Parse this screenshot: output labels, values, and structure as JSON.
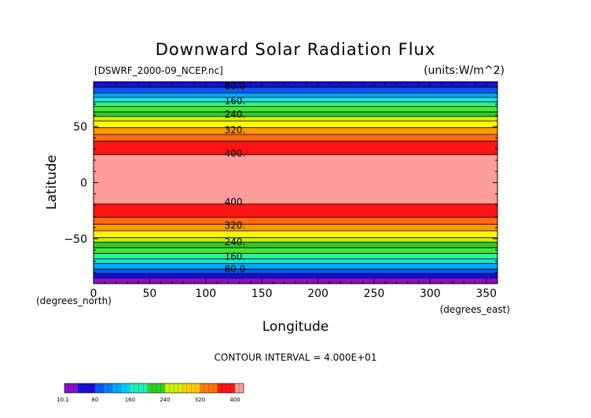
{
  "chart_data": {
    "type": "contour",
    "title": "Downward Solar Radiation Flux",
    "file_label": "[DSWRF_2000-09_NCEP.nc]",
    "units_label": "(units:W/m^2)",
    "xlabel": "Longitude",
    "ylabel": "Latitude",
    "x_unit_label": "(degrees_east)",
    "y_unit_label": "(degrees_north)",
    "xlim": [
      0,
      360
    ],
    "ylim": [
      -90,
      90
    ],
    "x_ticks": [
      0,
      50,
      100,
      150,
      200,
      250,
      300,
      350
    ],
    "y_ticks": [
      -50,
      0,
      50
    ],
    "y_tick_labels": [
      "−50",
      "0",
      "50"
    ],
    "contour_interval_text": "CONTOUR INTERVAL = 4.000E+01",
    "bands": [
      {
        "lat_min": 85,
        "lat_max": 90,
        "color": "#1a0cd8"
      },
      {
        "lat_min": 80,
        "lat_max": 85,
        "color": "#0a5af0"
      },
      {
        "lat_min": 76,
        "lat_max": 80,
        "color": "#00a8ff"
      },
      {
        "lat_min": 72,
        "lat_max": 76,
        "color": "#10e8d8"
      },
      {
        "lat_min": 68,
        "lat_max": 72,
        "color": "#30f090"
      },
      {
        "lat_min": 63,
        "lat_max": 68,
        "color": "#40e830"
      },
      {
        "lat_min": 59,
        "lat_max": 63,
        "color": "#30c820"
      },
      {
        "lat_min": 55,
        "lat_max": 59,
        "color": "#d0f000"
      },
      {
        "lat_min": 49,
        "lat_max": 55,
        "color": "#fff600"
      },
      {
        "lat_min": 43,
        "lat_max": 49,
        "color": "#ff9a00"
      },
      {
        "lat_min": 37,
        "lat_max": 43,
        "color": "#ff6a10"
      },
      {
        "lat_min": 25,
        "lat_max": 37,
        "color": "#ff1414"
      },
      {
        "lat_min": -19,
        "lat_max": 25,
        "color": "#ff9c9c"
      },
      {
        "lat_min": -31,
        "lat_max": -19,
        "color": "#ff1414"
      },
      {
        "lat_min": -37,
        "lat_max": -31,
        "color": "#ff6a10"
      },
      {
        "lat_min": -43,
        "lat_max": -37,
        "color": "#ff9a00"
      },
      {
        "lat_min": -49,
        "lat_max": -43,
        "color": "#fff600"
      },
      {
        "lat_min": -53,
        "lat_max": -49,
        "color": "#d0f000"
      },
      {
        "lat_min": -58,
        "lat_max": -53,
        "color": "#30c820"
      },
      {
        "lat_min": -63,
        "lat_max": -58,
        "color": "#40e830"
      },
      {
        "lat_min": -68,
        "lat_max": -63,
        "color": "#30f090"
      },
      {
        "lat_min": -72,
        "lat_max": -68,
        "color": "#10e8d8"
      },
      {
        "lat_min": -77,
        "lat_max": -72,
        "color": "#00a8ff"
      },
      {
        "lat_min": -81,
        "lat_max": -77,
        "color": "#0a5af0"
      },
      {
        "lat_min": -85,
        "lat_max": -81,
        "color": "#1a0cd8"
      },
      {
        "lat_min": -90,
        "lat_max": -85,
        "color": "#8a10c8"
      }
    ],
    "contour_labels": [
      {
        "text": "80.0",
        "lat": 86
      },
      {
        "text": "160.",
        "lat": 73
      },
      {
        "text": "240.",
        "lat": 61
      },
      {
        "text": "320.",
        "lat": 47
      },
      {
        "text": "400.",
        "lat": 26
      },
      {
        "text": "400.",
        "lat": -17
      },
      {
        "text": "320.",
        "lat": -38
      },
      {
        "text": "240.",
        "lat": -53
      },
      {
        "text": "160.",
        "lat": -66
      },
      {
        "text": "80.0",
        "lat": -77
      }
    ],
    "colorbar": {
      "min": 10.1,
      "max": 420,
      "tick_labels": [
        {
          "text": "10.1",
          "value": 10.1
        },
        {
          "text": "80",
          "value": 80
        },
        {
          "text": "160",
          "value": 160
        },
        {
          "text": "240",
          "value": 240
        },
        {
          "text": "320",
          "value": 320
        },
        {
          "text": "400",
          "value": 400
        }
      ],
      "segments": [
        {
          "from": 10.1,
          "to": 40,
          "color": "#8a10c8"
        },
        {
          "from": 40,
          "to": 80,
          "color": "#1a0cd8"
        },
        {
          "from": 80,
          "to": 100,
          "color": "#0a5af0"
        },
        {
          "from": 100,
          "to": 120,
          "color": "#0a80ff"
        },
        {
          "from": 120,
          "to": 140,
          "color": "#00a8ff"
        },
        {
          "from": 140,
          "to": 160,
          "color": "#00d0ff"
        },
        {
          "from": 160,
          "to": 200,
          "color": "#20f0c0"
        },
        {
          "from": 200,
          "to": 240,
          "color": "#30d020"
        },
        {
          "from": 240,
          "to": 280,
          "color": "#d0f000"
        },
        {
          "from": 280,
          "to": 320,
          "color": "#ffd000"
        },
        {
          "from": 320,
          "to": 360,
          "color": "#ff7a00"
        },
        {
          "from": 360,
          "to": 400,
          "color": "#ff1414"
        },
        {
          "from": 400,
          "to": 420,
          "color": "#ff9c9c"
        }
      ]
    }
  }
}
